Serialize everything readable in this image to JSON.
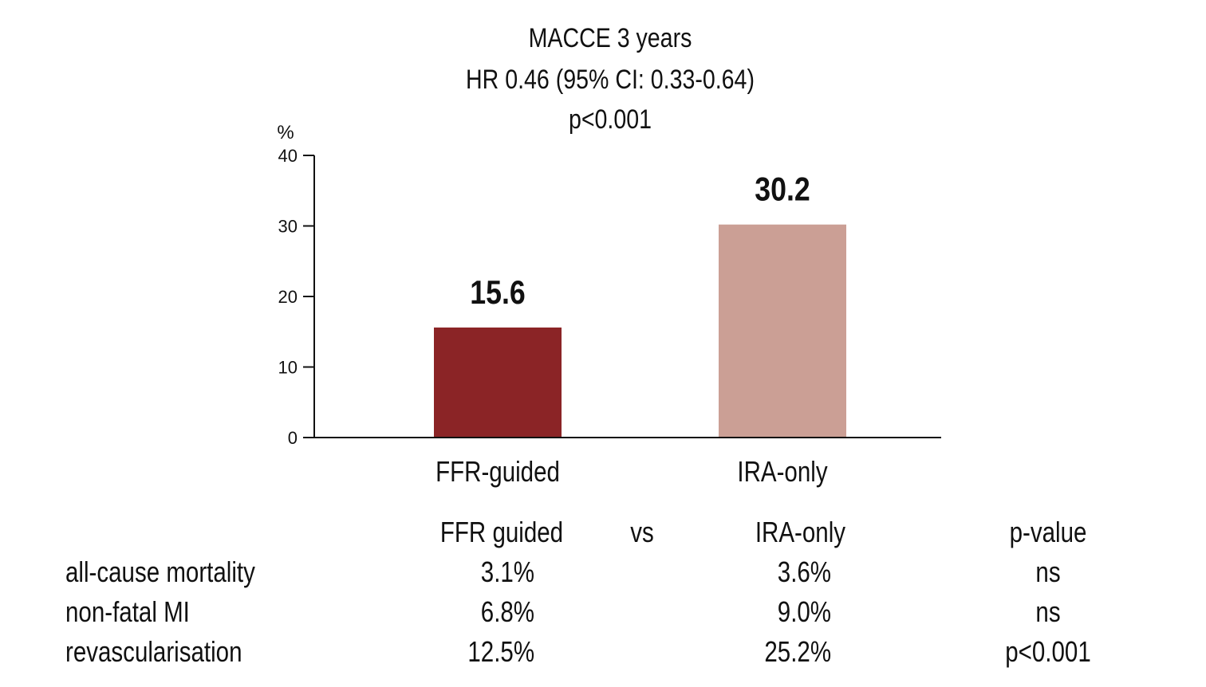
{
  "chart_data": {
    "type": "bar",
    "title_lines": [
      "MACCE 3 years",
      "HR 0.46 (95% CI: 0.33-0.64)",
      "p<0.001"
    ],
    "ylabel": "%",
    "ylim": [
      0,
      40
    ],
    "yticks": [
      0,
      10,
      20,
      30,
      40
    ],
    "categories": [
      "FFR-guided",
      "IRA-only"
    ],
    "values": [
      15.6,
      30.2
    ],
    "data_labels": [
      "15.6",
      "30.2"
    ],
    "bar_colors": [
      "#8b2426",
      "#cb9f95"
    ],
    "grid": false
  },
  "table": {
    "headers": {
      "col1": "FFR guided",
      "vs": "vs",
      "col2": "IRA-only",
      "p": "p-value"
    },
    "rows": [
      {
        "label": "all-cause mortality",
        "ffr": "3.1%",
        "ira": "3.6%",
        "p": "ns"
      },
      {
        "label": "non-fatal MI",
        "ffr": "6.8%",
        "ira": "9.0%",
        "p": "ns"
      },
      {
        "label": "revascularisation",
        "ffr": "12.5%",
        "ira": "25.2%",
        "p": "p<0.001"
      }
    ]
  }
}
